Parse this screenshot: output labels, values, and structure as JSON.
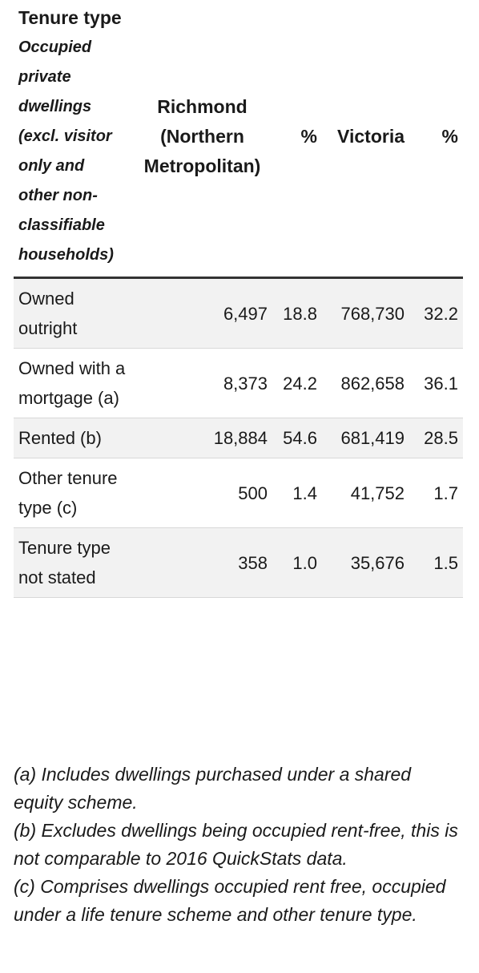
{
  "table": {
    "header": [
      "Tenure type",
      "Richmond (Northern Metropolitan)",
      "%",
      "Victoria",
      "%"
    ],
    "header_note": "Occupied private dwellings (excl. visitor only and other non-classifiable households)",
    "rows": [
      [
        "Owned outright",
        "6,497",
        "18.8",
        "768,730",
        "32.2"
      ],
      [
        "Owned with a mortgage (a)",
        "8,373",
        "24.2",
        "862,658",
        "36.1"
      ],
      [
        "Rented (b)",
        "18,884",
        "54.6",
        "681,419",
        "28.5"
      ],
      [
        "Other tenure type (c)",
        "500",
        "1.4",
        "41,752",
        "1.7"
      ],
      [
        "Tenure type not stated",
        "358",
        "1.0",
        "35,676",
        "1.5"
      ]
    ]
  },
  "footnotes": [
    "(a) Includes dwellings purchased under a shared equity scheme.",
    "(b) Excludes dwellings being occupied rent-free, this is not comparable to 2016 QuickStats data.",
    "(c) Comprises dwellings occupied rent free, occupied under a life tenure scheme and other tenure type."
  ]
}
